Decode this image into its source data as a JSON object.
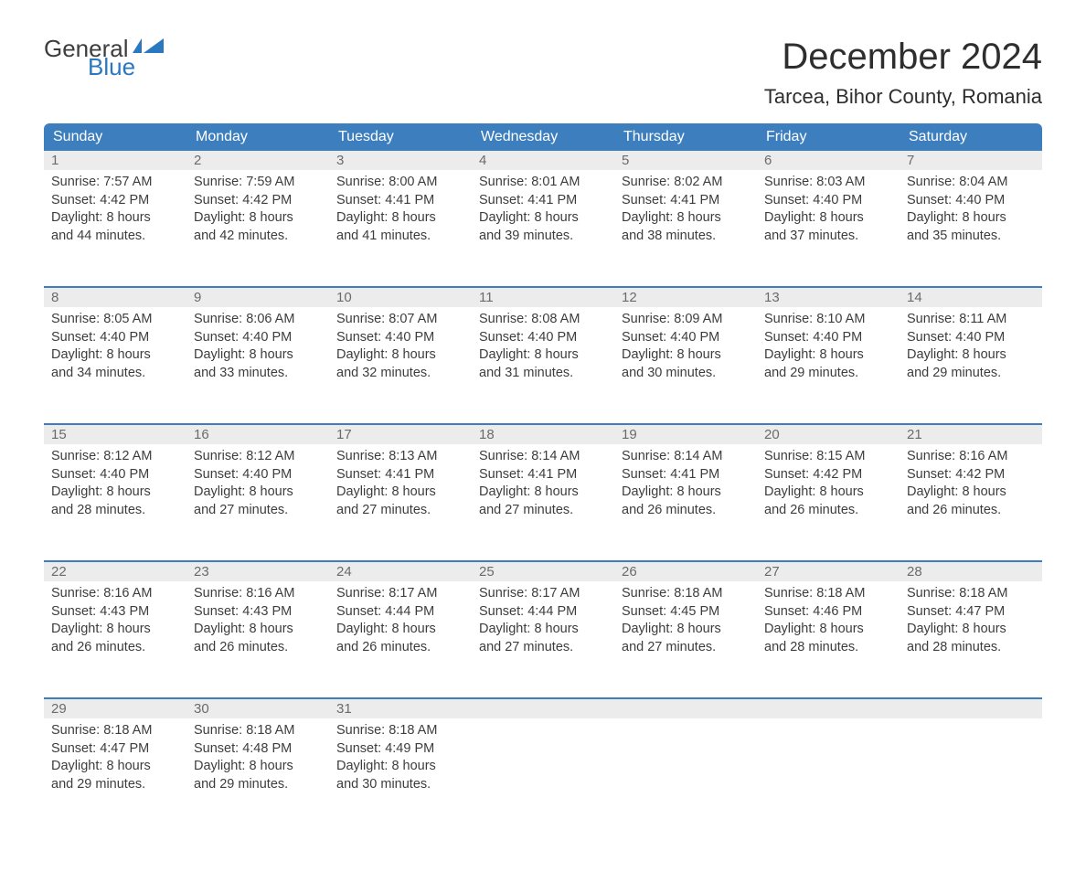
{
  "logo": {
    "word1": "General",
    "word2": "Blue",
    "word1_color": "#3d3d3d",
    "word2_color": "#2a78bf"
  },
  "title": "December 2024",
  "location": "Tarcea, Bihor County, Romania",
  "colors": {
    "header_bg": "#3d7fbe",
    "header_text": "#ffffff",
    "daynum_bg": "#ececec",
    "daynum_text": "#6b6b6b",
    "body_text": "#3d3d3d",
    "week_border": "#3d7fbe",
    "page_bg": "#ffffff"
  },
  "typography": {
    "title_fontsize": 40,
    "location_fontsize": 22,
    "weekday_fontsize": 16,
    "daynum_fontsize": 15,
    "cell_fontsize": 14.5,
    "logo_fontsize": 26
  },
  "weekdays": [
    "Sunday",
    "Monday",
    "Tuesday",
    "Wednesday",
    "Thursday",
    "Friday",
    "Saturday"
  ],
  "labels": {
    "sunrise_prefix": "Sunrise: ",
    "sunset_prefix": "Sunset: ",
    "daylight_prefix": "Daylight: ",
    "daylight_unit1": " hours",
    "daylight_joiner": "and ",
    "daylight_unit2": " minutes."
  },
  "weeks": [
    [
      {
        "day": "1",
        "sunrise": "7:57 AM",
        "sunset": "4:42 PM",
        "dh": "8",
        "dm": "44"
      },
      {
        "day": "2",
        "sunrise": "7:59 AM",
        "sunset": "4:42 PM",
        "dh": "8",
        "dm": "42"
      },
      {
        "day": "3",
        "sunrise": "8:00 AM",
        "sunset": "4:41 PM",
        "dh": "8",
        "dm": "41"
      },
      {
        "day": "4",
        "sunrise": "8:01 AM",
        "sunset": "4:41 PM",
        "dh": "8",
        "dm": "39"
      },
      {
        "day": "5",
        "sunrise": "8:02 AM",
        "sunset": "4:41 PM",
        "dh": "8",
        "dm": "38"
      },
      {
        "day": "6",
        "sunrise": "8:03 AM",
        "sunset": "4:40 PM",
        "dh": "8",
        "dm": "37"
      },
      {
        "day": "7",
        "sunrise": "8:04 AM",
        "sunset": "4:40 PM",
        "dh": "8",
        "dm": "35"
      }
    ],
    [
      {
        "day": "8",
        "sunrise": "8:05 AM",
        "sunset": "4:40 PM",
        "dh": "8",
        "dm": "34"
      },
      {
        "day": "9",
        "sunrise": "8:06 AM",
        "sunset": "4:40 PM",
        "dh": "8",
        "dm": "33"
      },
      {
        "day": "10",
        "sunrise": "8:07 AM",
        "sunset": "4:40 PM",
        "dh": "8",
        "dm": "32"
      },
      {
        "day": "11",
        "sunrise": "8:08 AM",
        "sunset": "4:40 PM",
        "dh": "8",
        "dm": "31"
      },
      {
        "day": "12",
        "sunrise": "8:09 AM",
        "sunset": "4:40 PM",
        "dh": "8",
        "dm": "30"
      },
      {
        "day": "13",
        "sunrise": "8:10 AM",
        "sunset": "4:40 PM",
        "dh": "8",
        "dm": "29"
      },
      {
        "day": "14",
        "sunrise": "8:11 AM",
        "sunset": "4:40 PM",
        "dh": "8",
        "dm": "29"
      }
    ],
    [
      {
        "day": "15",
        "sunrise": "8:12 AM",
        "sunset": "4:40 PM",
        "dh": "8",
        "dm": "28"
      },
      {
        "day": "16",
        "sunrise": "8:12 AM",
        "sunset": "4:40 PM",
        "dh": "8",
        "dm": "27"
      },
      {
        "day": "17",
        "sunrise": "8:13 AM",
        "sunset": "4:41 PM",
        "dh": "8",
        "dm": "27"
      },
      {
        "day": "18",
        "sunrise": "8:14 AM",
        "sunset": "4:41 PM",
        "dh": "8",
        "dm": "27"
      },
      {
        "day": "19",
        "sunrise": "8:14 AM",
        "sunset": "4:41 PM",
        "dh": "8",
        "dm": "26"
      },
      {
        "day": "20",
        "sunrise": "8:15 AM",
        "sunset": "4:42 PM",
        "dh": "8",
        "dm": "26"
      },
      {
        "day": "21",
        "sunrise": "8:16 AM",
        "sunset": "4:42 PM",
        "dh": "8",
        "dm": "26"
      }
    ],
    [
      {
        "day": "22",
        "sunrise": "8:16 AM",
        "sunset": "4:43 PM",
        "dh": "8",
        "dm": "26"
      },
      {
        "day": "23",
        "sunrise": "8:16 AM",
        "sunset": "4:43 PM",
        "dh": "8",
        "dm": "26"
      },
      {
        "day": "24",
        "sunrise": "8:17 AM",
        "sunset": "4:44 PM",
        "dh": "8",
        "dm": "26"
      },
      {
        "day": "25",
        "sunrise": "8:17 AM",
        "sunset": "4:44 PM",
        "dh": "8",
        "dm": "27"
      },
      {
        "day": "26",
        "sunrise": "8:18 AM",
        "sunset": "4:45 PM",
        "dh": "8",
        "dm": "27"
      },
      {
        "day": "27",
        "sunrise": "8:18 AM",
        "sunset": "4:46 PM",
        "dh": "8",
        "dm": "28"
      },
      {
        "day": "28",
        "sunrise": "8:18 AM",
        "sunset": "4:47 PM",
        "dh": "8",
        "dm": "28"
      }
    ],
    [
      {
        "day": "29",
        "sunrise": "8:18 AM",
        "sunset": "4:47 PM",
        "dh": "8",
        "dm": "29"
      },
      {
        "day": "30",
        "sunrise": "8:18 AM",
        "sunset": "4:48 PM",
        "dh": "8",
        "dm": "29"
      },
      {
        "day": "31",
        "sunrise": "8:18 AM",
        "sunset": "4:49 PM",
        "dh": "8",
        "dm": "30"
      },
      null,
      null,
      null,
      null
    ]
  ]
}
